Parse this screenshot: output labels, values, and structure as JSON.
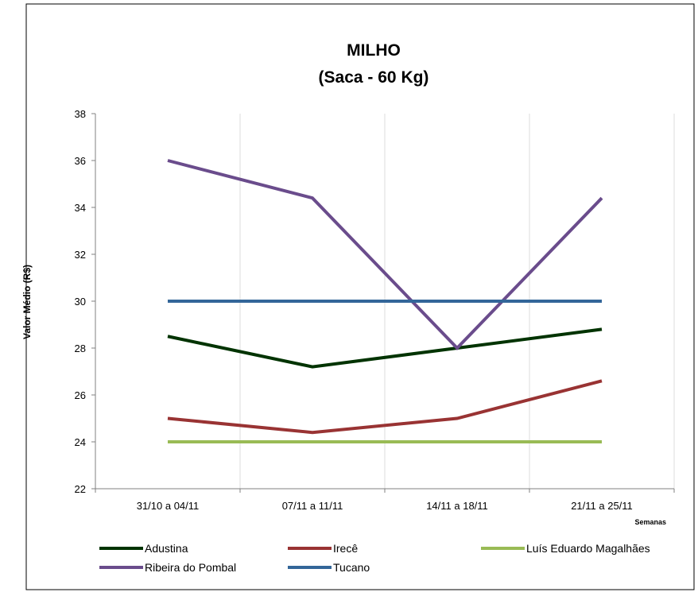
{
  "chart_data": {
    "type": "line",
    "title": [
      "MILHO",
      "(Saca - 60 Kg)"
    ],
    "xlabel": "Semanas",
    "ylabel": "Valor Médio (R$)",
    "categories": [
      "31/10 a 04/11",
      "07/11 a 11/11",
      "14/11 a 18/11",
      "21/11 a 25/11"
    ],
    "ylim": [
      22,
      38
    ],
    "yticks": [
      "22",
      "24",
      "26",
      "28",
      "30",
      "32",
      "34",
      "36",
      "38"
    ],
    "grid": "vertical",
    "legend": "bottom",
    "series": [
      {
        "name": "Adustina",
        "color": "#003300",
        "values": [
          28.5,
          27.2,
          28.0,
          28.8
        ]
      },
      {
        "name": "Irecê",
        "color": "#993333",
        "values": [
          25.0,
          24.4,
          25.0,
          26.6
        ]
      },
      {
        "name": "Luís Eduardo Magalhães",
        "color": "#99bb55",
        "values": [
          24.0,
          24.0,
          24.0,
          24.0
        ]
      },
      {
        "name": "Ribeira do Pombal",
        "color": "#6a4c8c",
        "values": [
          36.0,
          34.4,
          28.0,
          34.4
        ]
      },
      {
        "name": "Tucano",
        "color": "#336699",
        "values": [
          30.0,
          30.0,
          30.0,
          30.0
        ]
      }
    ]
  }
}
